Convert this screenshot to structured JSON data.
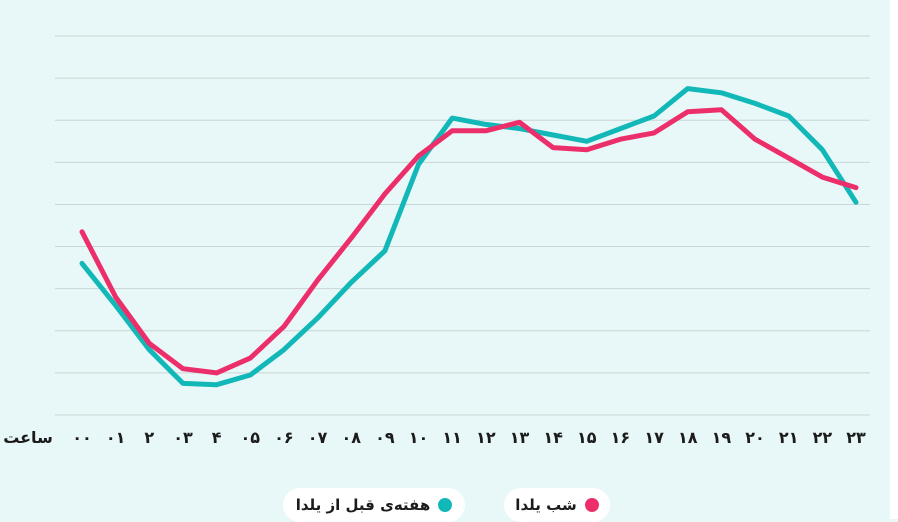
{
  "chart_data": {
    "type": "line",
    "xlabel": "ساعت",
    "x": [
      "۰۰",
      "۰۱",
      "۲",
      "۰۳",
      "۴",
      "۰۵",
      "۰۶",
      "۰۷",
      "۰۸",
      "۰۹",
      "۱۰",
      "۱۱",
      "۱۲",
      "۱۳",
      "۱۴",
      "۱۵",
      "۱۶",
      "۱۷",
      "۱۸",
      "۱۹",
      "۲۰",
      "۲۱",
      "۲۲",
      "۲۳"
    ],
    "ylim": [
      0,
      9
    ],
    "y_gridlines": 10,
    "grid": true,
    "series": [
      {
        "name": "هفته‌ی قبل از یلدا",
        "color": "#12b8b8",
        "values": [
          3.6,
          2.6,
          1.55,
          0.75,
          0.72,
          0.95,
          1.55,
          2.3,
          3.15,
          3.9,
          5.95,
          7.05,
          6.9,
          6.8,
          6.65,
          6.5,
          6.8,
          7.1,
          7.75,
          7.65,
          7.4,
          7.1,
          6.3,
          5.05
        ],
        "legend_label": "هفته‌ی قبل از یلدا"
      },
      {
        "name": "شب یلدا",
        "color": "#ec2f6b",
        "values": [
          4.35,
          2.8,
          1.7,
          1.1,
          1.0,
          1.35,
          2.1,
          3.2,
          4.2,
          5.25,
          6.15,
          6.75,
          6.75,
          6.95,
          6.35,
          6.3,
          6.55,
          6.7,
          7.2,
          7.25,
          6.55,
          6.1,
          5.65,
          5.4
        ],
        "legend_label": "شب یلدا"
      }
    ]
  }
}
